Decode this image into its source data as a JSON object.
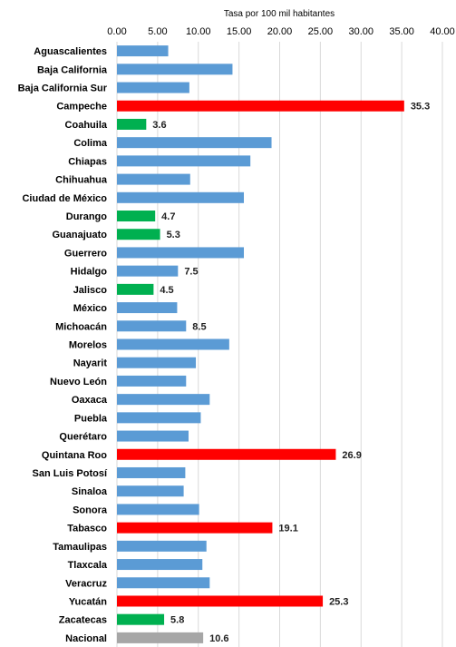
{
  "chart_data": {
    "type": "bar",
    "orientation": "horizontal",
    "title": "",
    "xlabel": "Tasa por 100 mil habitantes",
    "xlim": [
      0,
      40
    ],
    "xticks": [
      "0.00",
      "5.00",
      "10.00",
      "15.00",
      "20.00",
      "25.00",
      "30.00",
      "35.00",
      "40.00"
    ],
    "x_axis_position": "top",
    "grid": true,
    "categories": [
      "Aguascalientes",
      "Baja California",
      "Baja California Sur",
      "Campeche",
      "Coahuila",
      "Colima",
      "Chiapas",
      "Chihuahua",
      "Ciudad de México",
      "Durango",
      "Guanajuato",
      "Guerrero",
      "Hidalgo",
      "Jalisco",
      "México",
      "Michoacán",
      "Morelos",
      "Nayarit",
      "Nuevo León",
      "Oaxaca",
      "Puebla",
      "Querétaro",
      "Quintana Roo",
      "San Luis Potosí",
      "Sinaloa",
      "Sonora",
      "Tabasco",
      "Tamaulipas",
      "Tlaxcala",
      "Veracruz",
      "Yucatán",
      "Zacatecas",
      "Nacional"
    ],
    "values": [
      6.3,
      14.2,
      8.9,
      35.3,
      3.6,
      19.0,
      16.4,
      9.0,
      15.6,
      4.7,
      5.3,
      15.6,
      7.5,
      4.5,
      7.4,
      8.5,
      13.8,
      9.7,
      8.5,
      11.4,
      10.3,
      8.8,
      26.9,
      8.4,
      8.2,
      10.1,
      19.1,
      11.0,
      10.5,
      11.4,
      25.3,
      5.8,
      10.6
    ],
    "colors": [
      "#5B9BD5",
      "#5B9BD5",
      "#5B9BD5",
      "#FF0000",
      "#00B050",
      "#5B9BD5",
      "#5B9BD5",
      "#5B9BD5",
      "#5B9BD5",
      "#00B050",
      "#00B050",
      "#5B9BD5",
      "#5B9BD5",
      "#00B050",
      "#5B9BD5",
      "#5B9BD5",
      "#5B9BD5",
      "#5B9BD5",
      "#5B9BD5",
      "#5B9BD5",
      "#5B9BD5",
      "#5B9BD5",
      "#FF0000",
      "#5B9BD5",
      "#5B9BD5",
      "#5B9BD5",
      "#FF0000",
      "#5B9BD5",
      "#5B9BD5",
      "#5B9BD5",
      "#FF0000",
      "#00B050",
      "#A6A6A6"
    ],
    "data_labels": [
      "",
      "",
      "",
      "35.3",
      "3.6",
      "",
      "",
      "",
      "",
      "4.7",
      "5.3",
      "",
      "7.5",
      "4.5",
      "",
      "8.5",
      "",
      "",
      "",
      "",
      "",
      "",
      "26.9",
      "",
      "",
      "",
      "19.1",
      "",
      "",
      "",
      "25.3",
      "5.8",
      "10.6"
    ]
  }
}
